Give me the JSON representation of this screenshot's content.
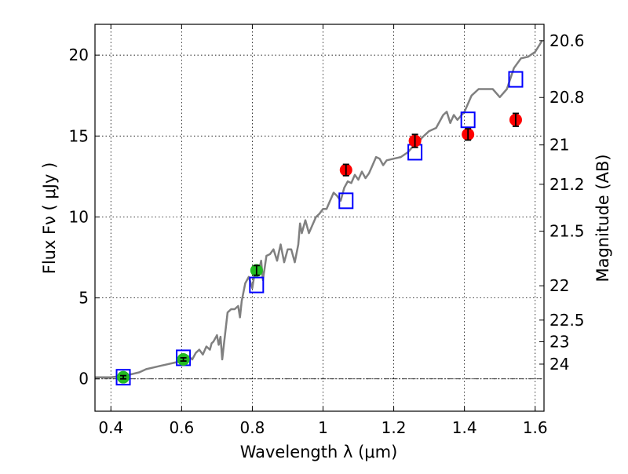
{
  "chart_data": {
    "type": "scatter",
    "xlabel": "Wavelength  λ (μm)",
    "ylabel": "Flux  Fν  ( μJy )",
    "y2label": "Magnitude (AB)",
    "xlim": [
      0.355,
      1.625
    ],
    "ylim": [
      -2.0,
      21.9
    ],
    "xticks": [
      0.4,
      0.6,
      0.8,
      1.0,
      1.2,
      1.4,
      1.6
    ],
    "xtick_labels": [
      "0.4",
      "0.6",
      "0.8",
      "1",
      "1.2",
      "1.4",
      "1.6"
    ],
    "yticks": [
      0,
      5,
      10,
      15,
      20
    ],
    "ytick_labels": [
      "0",
      "5",
      "10",
      "15",
      "20"
    ],
    "y2ticks": [
      {
        "label": "20.6",
        "flux": 20.89
      },
      {
        "label": "20.8",
        "flux": 17.38
      },
      {
        "label": "21",
        "flux": 14.45
      },
      {
        "label": "21.2",
        "flux": 12.02
      },
      {
        "label": "21.5",
        "flux": 9.12
      },
      {
        "label": "22",
        "flux": 5.75
      },
      {
        "label": "22.5",
        "flux": 3.63
      },
      {
        "label": "23",
        "flux": 2.29
      },
      {
        "label": "24",
        "flux": 0.91
      }
    ],
    "grid": true,
    "zero_line": true,
    "colors": {
      "model": "#808080",
      "square": "#0000ff",
      "green": "#22bb22",
      "red": "#ff0000",
      "errorbar": "#000000"
    },
    "series": [
      {
        "kind": "line",
        "x": [
          0.355,
          0.38,
          0.4,
          0.42,
          0.44,
          0.46,
          0.48,
          0.5,
          0.52,
          0.54,
          0.56,
          0.58,
          0.6,
          0.61,
          0.62,
          0.63,
          0.64,
          0.65,
          0.66,
          0.67,
          0.68,
          0.685,
          0.69,
          0.7,
          0.705,
          0.71,
          0.715,
          0.72,
          0.73,
          0.74,
          0.75,
          0.76,
          0.765,
          0.77,
          0.78,
          0.79,
          0.8,
          0.81,
          0.82,
          0.825,
          0.83,
          0.84,
          0.85,
          0.86,
          0.87,
          0.875,
          0.88,
          0.89,
          0.9,
          0.91,
          0.92,
          0.93,
          0.935,
          0.94,
          0.95,
          0.96,
          0.97,
          0.98,
          0.99,
          1.0,
          1.01,
          1.02,
          1.03,
          1.04,
          1.05,
          1.06,
          1.07,
          1.08,
          1.09,
          1.1,
          1.11,
          1.12,
          1.13,
          1.14,
          1.15,
          1.16,
          1.17,
          1.18,
          1.2,
          1.22,
          1.24,
          1.26,
          1.27,
          1.28,
          1.3,
          1.32,
          1.34,
          1.35,
          1.36,
          1.37,
          1.38,
          1.4,
          1.42,
          1.44,
          1.46,
          1.48,
          1.5,
          1.52,
          1.54,
          1.56,
          1.58,
          1.6,
          1.62
        ],
        "y": [
          0.1,
          0.1,
          0.1,
          0.15,
          0.2,
          0.3,
          0.4,
          0.6,
          0.7,
          0.8,
          0.9,
          1.0,
          1.1,
          1.2,
          1.4,
          1.2,
          1.6,
          1.8,
          1.5,
          2.0,
          1.8,
          2.2,
          2.3,
          2.7,
          2.1,
          2.6,
          1.2,
          2.2,
          4.1,
          4.3,
          4.3,
          4.5,
          3.8,
          4.8,
          5.9,
          6.3,
          5.6,
          7.0,
          6.8,
          7.3,
          6.1,
          7.6,
          7.7,
          8.0,
          7.3,
          7.8,
          8.3,
          7.2,
          8.0,
          8.0,
          7.2,
          8.3,
          9.6,
          9.0,
          9.8,
          9.0,
          9.5,
          10.0,
          10.2,
          10.5,
          10.5,
          11.0,
          11.5,
          11.3,
          11.0,
          11.8,
          12.2,
          12.1,
          12.6,
          12.3,
          12.8,
          12.4,
          12.7,
          13.2,
          13.7,
          13.6,
          13.2,
          13.5,
          13.6,
          13.7,
          14.0,
          14.5,
          14.6,
          14.9,
          15.3,
          15.5,
          16.3,
          16.5,
          15.8,
          16.3,
          16.0,
          16.5,
          17.5,
          17.9,
          17.9,
          17.9,
          17.4,
          17.9,
          19.2,
          19.8,
          19.9,
          20.2,
          20.9
        ]
      },
      {
        "kind": "squares",
        "x": [
          0.435,
          0.605,
          0.812,
          1.065,
          1.26,
          1.41,
          1.545
        ],
        "y": [
          0.1,
          1.3,
          5.8,
          11.0,
          14.0,
          16.0,
          18.5
        ]
      },
      {
        "kind": "green-points",
        "x": [
          0.435,
          0.605,
          0.812
        ],
        "y": [
          0.1,
          1.2,
          6.7
        ],
        "yerr": [
          0.1,
          0.1,
          0.3
        ]
      },
      {
        "kind": "red-points",
        "x": [
          1.065,
          1.26,
          1.41,
          1.545
        ],
        "y": [
          12.9,
          14.7,
          15.1,
          16.0
        ],
        "yerr": [
          0.35,
          0.4,
          0.35,
          0.4
        ]
      }
    ]
  }
}
